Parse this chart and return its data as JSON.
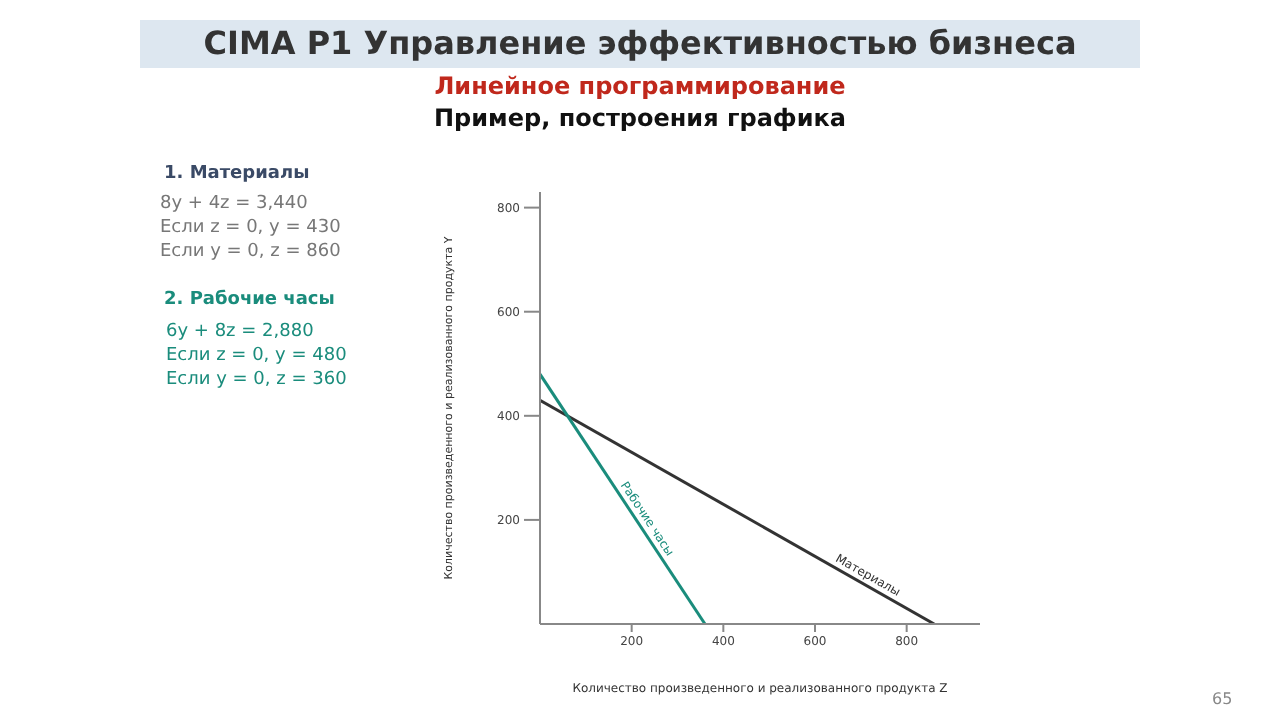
{
  "chart_data": {
    "type": "line",
    "title": "CIMA P1 Управление эффективностью бизнеса",
    "subtitle": "Линейное программирование",
    "xlabel": "Количество произведенного и реализованного продукта Z",
    "ylabel": "Количество произведенного и реализованного продукта Y",
    "annotations": [
      "Пример, построения графика",
      "1. Материалы",
      "8y + 4z = 3,440",
      "Если z = 0, y = 430",
      "Если y = 0, z = 860",
      "2. Рабочие часы",
      "6y + 8z = 2,880",
      "Если z = 0, y = 480",
      "Если y = 0, z = 360",
      "65"
    ],
    "series": [
      {
        "name": "Материалы",
        "color": "#333333",
        "x": [
          0,
          860
        ],
        "values": [
          430,
          0
        ]
      },
      {
        "name": "Рабочие часы",
        "color": "#1a8c7c",
        "x": [
          0,
          360
        ],
        "values": [
          480,
          0
        ]
      }
    ],
    "xlim": [
      0,
      960
    ],
    "ylim": [
      0,
      830
    ],
    "xticks": [
      200,
      400,
      600,
      800
    ],
    "yticks": [
      200,
      400,
      600,
      800
    ],
    "grid": false,
    "legend": false,
    "marker": "none",
    "line_style": "solid"
  }
}
